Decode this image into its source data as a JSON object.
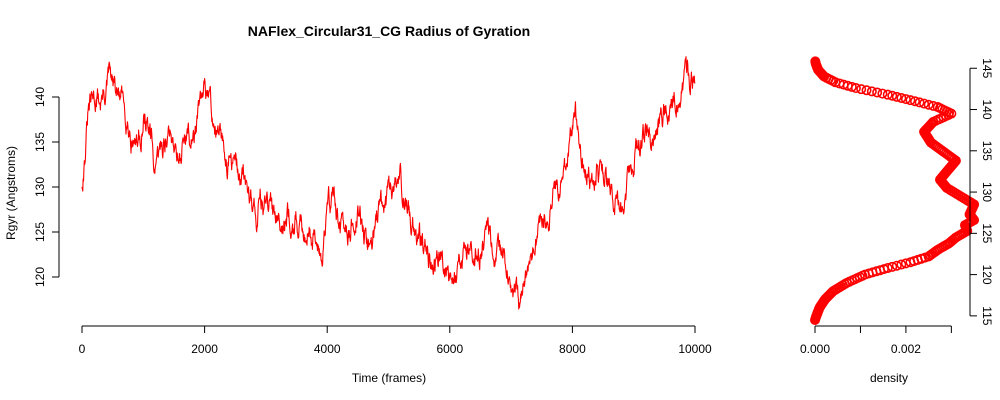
{
  "chart_data": [
    {
      "type": "line",
      "title": "NAFlex_Circular31_CG Radius of Gyration",
      "xlabel": "Time (frames)",
      "ylabel": "Rgyr (Angstroms)",
      "xlim": [
        0,
        10000
      ],
      "ylim": [
        116,
        143
      ],
      "x_ticks": [
        "0",
        "2000",
        "4000",
        "6000",
        "8000",
        "10000"
      ],
      "y_ticks": [
        "120",
        "125",
        "130",
        "135",
        "140"
      ],
      "grid": false,
      "series_color": "#ff0000",
      "series": [
        {
          "x": [
            0,
            50,
            100,
            200,
            300,
            400,
            450,
            500,
            600,
            700,
            800,
            900,
            1000,
            1050,
            1150,
            1200,
            1250,
            1300,
            1400,
            1500,
            1600,
            1700,
            1800,
            1900,
            2000,
            2050,
            2100,
            2200,
            2300,
            2400,
            2500,
            2600,
            2700,
            2800,
            2850,
            2900,
            3000,
            3100,
            3200,
            3300,
            3400,
            3500,
            3600,
            3700,
            3800,
            3900,
            3950,
            4000,
            4100,
            4200,
            4300,
            4400,
            4500,
            4600,
            4700,
            4800,
            4900,
            5000,
            5100,
            5200,
            5300,
            5400,
            5500,
            5600,
            5700,
            5800,
            5900,
            6000,
            6050,
            6100,
            6200,
            6300,
            6400,
            6500,
            6600,
            6700,
            6800,
            6900,
            7000,
            7100,
            7150,
            7200,
            7300,
            7400,
            7500,
            7600,
            7700,
            7800,
            7900,
            8000,
            8050,
            8100,
            8150,
            8200,
            8300,
            8400,
            8500,
            8600,
            8700,
            8800,
            8900,
            9000,
            9100,
            9200,
            9300,
            9400,
            9500,
            9600,
            9700,
            9800,
            9900,
            10000
          ],
          "y": [
            130.5,
            134,
            138,
            140,
            139.5,
            141,
            142.5,
            141,
            140,
            139,
            136,
            135,
            137,
            137.5,
            134,
            131,
            133,
            134.5,
            136,
            135,
            134,
            136,
            135,
            138,
            140,
            140.5,
            139,
            136,
            134,
            133,
            132,
            131,
            130,
            128,
            127,
            129,
            128,
            127,
            128,
            126,
            127,
            126,
            125,
            126,
            124,
            122.5,
            125,
            128,
            129,
            126,
            124,
            126,
            127,
            125,
            124,
            126,
            128,
            129,
            130,
            131,
            127,
            126,
            124,
            123,
            122,
            123,
            122,
            121,
            119.5,
            121,
            122,
            123,
            124,
            123,
            126,
            124,
            122,
            121,
            119,
            117,
            116,
            118,
            121,
            124,
            126,
            127,
            129,
            130,
            133,
            136,
            139,
            135,
            133,
            132,
            131,
            132,
            131,
            130,
            129,
            127.5,
            131,
            133,
            135,
            136,
            135,
            137,
            138,
            139,
            140,
            141,
            142,
            141.5
          ]
        }
      ]
    },
    {
      "type": "area",
      "xlabel": "density",
      "xlim": [
        0,
        0.0033
      ],
      "ylim": [
        114.5,
        146
      ],
      "x_ticks": [
        "0.000",
        "0.002"
      ],
      "y_ticks": [
        "115",
        "120",
        "125",
        "130",
        "135",
        "140",
        "145"
      ],
      "series_color": "#ff0000",
      "series": [
        {
          "density": [
            0,
            3e-05,
            0.0001,
            0.00022,
            0.0004,
            0.0007,
            0.0011,
            0.0016,
            0.0021,
            0.0025,
            0.0027,
            0.00295,
            0.0031,
            0.00335,
            0.0033,
            0.0035,
            0.0034,
            0.0035,
            0.0032,
            0.0029,
            0.00275,
            0.0029,
            0.0031,
            0.0028,
            0.00255,
            0.0024,
            0.0026,
            0.003,
            0.0027,
            0.0022,
            0.0016,
            0.0009,
            0.00045,
            0.0002,
            7e-05,
            2e-05,
            0
          ],
          "y": [
            114.5,
            115,
            116,
            117,
            118,
            119,
            120,
            120.8,
            121.5,
            122.2,
            123,
            123.8,
            124.5,
            125.3,
            126,
            126.6,
            127.3,
            128.5,
            129.5,
            130.5,
            131.5,
            132.5,
            133.8,
            135,
            136,
            137.3,
            138.5,
            139.5,
            140.3,
            141,
            141.8,
            142.6,
            143.3,
            144,
            144.8,
            145.5,
            146
          ]
        }
      ]
    }
  ]
}
